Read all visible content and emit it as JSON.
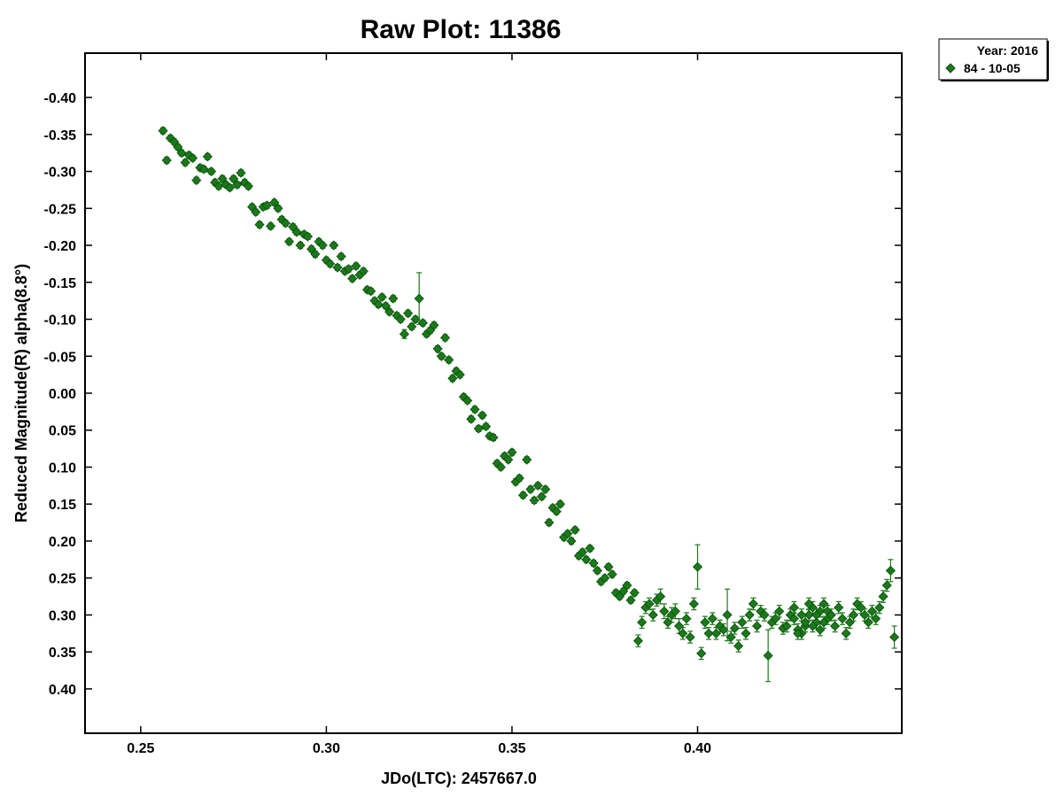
{
  "chart_data": {
    "type": "scatter",
    "title": "Raw Plot: 11386",
    "xlabel": "JDo(LTC): 2457667.0",
    "ylabel": "Reduced Magnitude(R) alpha(8.8°)",
    "xlim": [
      0.235,
      0.455
    ],
    "ylim": [
      -0.46,
      0.46
    ],
    "y_inverted": true,
    "x_ticks": [
      "0.25",
      "0.30",
      "0.35",
      "0.40"
    ],
    "y_ticks": [
      "-0.40",
      "-0.35",
      "-0.30",
      "-0.25",
      "-0.20",
      "-0.15",
      "-0.10",
      "-0.05",
      "0.00",
      "0.05",
      "0.10",
      "0.15",
      "0.20",
      "0.25",
      "0.30",
      "0.35",
      "0.40"
    ],
    "grid": false,
    "legend": {
      "title": "Year: 2016",
      "placement": "top-right-outside"
    },
    "series": [
      {
        "name": "84 - 10-05",
        "color": "#1a7a1a",
        "marker": "diamond",
        "points": [
          [
            0.256,
            -0.355,
            0.004
          ],
          [
            0.257,
            -0.315,
            0.004
          ],
          [
            0.258,
            -0.345,
            0.004
          ],
          [
            0.259,
            -0.34,
            0.004
          ],
          [
            0.26,
            -0.333,
            0.004
          ],
          [
            0.261,
            -0.325,
            0.004
          ],
          [
            0.262,
            -0.312,
            0.004
          ],
          [
            0.263,
            -0.322,
            0.004
          ],
          [
            0.264,
            -0.318,
            0.004
          ],
          [
            0.265,
            -0.288,
            0.004
          ],
          [
            0.266,
            -0.305,
            0.004
          ],
          [
            0.267,
            -0.303,
            0.004
          ],
          [
            0.268,
            -0.32,
            0.004
          ],
          [
            0.269,
            -0.3,
            0.004
          ],
          [
            0.27,
            -0.285,
            0.004
          ],
          [
            0.271,
            -0.28,
            0.004
          ],
          [
            0.272,
            -0.29,
            0.004
          ],
          [
            0.273,
            -0.282,
            0.004
          ],
          [
            0.274,
            -0.278,
            0.004
          ],
          [
            0.275,
            -0.29,
            0.004
          ],
          [
            0.276,
            -0.282,
            0.004
          ],
          [
            0.277,
            -0.298,
            0.004
          ],
          [
            0.278,
            -0.285,
            0.004
          ],
          [
            0.279,
            -0.28,
            0.004
          ],
          [
            0.28,
            -0.252,
            0.004
          ],
          [
            0.281,
            -0.245,
            0.004
          ],
          [
            0.282,
            -0.228,
            0.004
          ],
          [
            0.283,
            -0.252,
            0.004
          ],
          [
            0.284,
            -0.254,
            0.004
          ],
          [
            0.285,
            -0.226,
            0.004
          ],
          [
            0.286,
            -0.258,
            0.004
          ],
          [
            0.287,
            -0.25,
            0.004
          ],
          [
            0.288,
            -0.235,
            0.004
          ],
          [
            0.289,
            -0.23,
            0.004
          ],
          [
            0.29,
            -0.205,
            0.004
          ],
          [
            0.291,
            -0.225,
            0.004
          ],
          [
            0.292,
            -0.218,
            0.004
          ],
          [
            0.293,
            -0.2,
            0.004
          ],
          [
            0.294,
            -0.215,
            0.004
          ],
          [
            0.295,
            -0.212,
            0.004
          ],
          [
            0.296,
            -0.195,
            0.004
          ],
          [
            0.297,
            -0.188,
            0.004
          ],
          [
            0.298,
            -0.205,
            0.004
          ],
          [
            0.299,
            -0.2,
            0.004
          ],
          [
            0.3,
            -0.18,
            0.004
          ],
          [
            0.301,
            -0.175,
            0.004
          ],
          [
            0.302,
            -0.2,
            0.004
          ],
          [
            0.303,
            -0.17,
            0.004
          ],
          [
            0.304,
            -0.185,
            0.004
          ],
          [
            0.305,
            -0.165,
            0.004
          ],
          [
            0.306,
            -0.168,
            0.004
          ],
          [
            0.307,
            -0.155,
            0.004
          ],
          [
            0.308,
            -0.172,
            0.004
          ],
          [
            0.309,
            -0.16,
            0.004
          ],
          [
            0.31,
            -0.165,
            0.004
          ],
          [
            0.311,
            -0.14,
            0.004
          ],
          [
            0.312,
            -0.138,
            0.004
          ],
          [
            0.313,
            -0.125,
            0.004
          ],
          [
            0.314,
            -0.12,
            0.004
          ],
          [
            0.315,
            -0.13,
            0.004
          ],
          [
            0.316,
            -0.118,
            0.004
          ],
          [
            0.317,
            -0.11,
            0.004
          ],
          [
            0.318,
            -0.128,
            0.004
          ],
          [
            0.319,
            -0.105,
            0.004
          ],
          [
            0.32,
            -0.1,
            0.004
          ],
          [
            0.321,
            -0.08,
            0.006
          ],
          [
            0.322,
            -0.108,
            0.004
          ],
          [
            0.323,
            -0.09,
            0.004
          ],
          [
            0.324,
            -0.1,
            0.004
          ],
          [
            0.325,
            -0.128,
            0.035
          ],
          [
            0.326,
            -0.095,
            0.004
          ],
          [
            0.327,
            -0.08,
            0.004
          ],
          [
            0.328,
            -0.085,
            0.004
          ],
          [
            0.329,
            -0.092,
            0.004
          ],
          [
            0.33,
            -0.06,
            0.004
          ],
          [
            0.331,
            -0.05,
            0.004
          ],
          [
            0.332,
            -0.075,
            0.004
          ],
          [
            0.333,
            -0.045,
            0.004
          ],
          [
            0.334,
            -0.02,
            0.004
          ],
          [
            0.335,
            -0.03,
            0.004
          ],
          [
            0.336,
            -0.025,
            0.004
          ],
          [
            0.337,
            0.005,
            0.004
          ],
          [
            0.338,
            0.01,
            0.004
          ],
          [
            0.339,
            0.035,
            0.004
          ],
          [
            0.34,
            0.022,
            0.004
          ],
          [
            0.341,
            0.048,
            0.004
          ],
          [
            0.342,
            0.03,
            0.004
          ],
          [
            0.343,
            0.045,
            0.004
          ],
          [
            0.344,
            0.058,
            0.004
          ],
          [
            0.345,
            0.06,
            0.004
          ],
          [
            0.346,
            0.095,
            0.004
          ],
          [
            0.347,
            0.1,
            0.004
          ],
          [
            0.348,
            0.085,
            0.004
          ],
          [
            0.349,
            0.09,
            0.004
          ],
          [
            0.35,
            0.08,
            0.004
          ],
          [
            0.351,
            0.12,
            0.004
          ],
          [
            0.352,
            0.115,
            0.004
          ],
          [
            0.353,
            0.138,
            0.004
          ],
          [
            0.354,
            0.09,
            0.004
          ],
          [
            0.355,
            0.13,
            0.004
          ],
          [
            0.356,
            0.145,
            0.004
          ],
          [
            0.357,
            0.125,
            0.004
          ],
          [
            0.358,
            0.14,
            0.004
          ],
          [
            0.359,
            0.13,
            0.004
          ],
          [
            0.36,
            0.175,
            0.004
          ],
          [
            0.361,
            0.155,
            0.004
          ],
          [
            0.362,
            0.16,
            0.004
          ],
          [
            0.363,
            0.15,
            0.004
          ],
          [
            0.364,
            0.195,
            0.004
          ],
          [
            0.365,
            0.19,
            0.004
          ],
          [
            0.366,
            0.2,
            0.004
          ],
          [
            0.367,
            0.185,
            0.004
          ],
          [
            0.368,
            0.22,
            0.004
          ],
          [
            0.369,
            0.215,
            0.004
          ],
          [
            0.37,
            0.225,
            0.004
          ],
          [
            0.371,
            0.21,
            0.004
          ],
          [
            0.372,
            0.23,
            0.004
          ],
          [
            0.373,
            0.24,
            0.004
          ],
          [
            0.374,
            0.255,
            0.004
          ],
          [
            0.375,
            0.25,
            0.004
          ],
          [
            0.376,
            0.235,
            0.004
          ],
          [
            0.377,
            0.245,
            0.004
          ],
          [
            0.378,
            0.27,
            0.004
          ],
          [
            0.379,
            0.275,
            0.004
          ],
          [
            0.38,
            0.268,
            0.004
          ],
          [
            0.381,
            0.26,
            0.004
          ],
          [
            0.382,
            0.28,
            0.004
          ],
          [
            0.383,
            0.27,
            0.004
          ],
          [
            0.384,
            0.335,
            0.008
          ],
          [
            0.385,
            0.31,
            0.008
          ],
          [
            0.386,
            0.29,
            0.008
          ],
          [
            0.387,
            0.285,
            0.008
          ],
          [
            0.388,
            0.3,
            0.008
          ],
          [
            0.389,
            0.28,
            0.008
          ],
          [
            0.39,
            0.275,
            0.01
          ],
          [
            0.391,
            0.295,
            0.01
          ],
          [
            0.392,
            0.31,
            0.008
          ],
          [
            0.393,
            0.3,
            0.01
          ],
          [
            0.394,
            0.295,
            0.01
          ],
          [
            0.395,
            0.315,
            0.01
          ],
          [
            0.396,
            0.325,
            0.008
          ],
          [
            0.397,
            0.305,
            0.008
          ],
          [
            0.398,
            0.33,
            0.008
          ],
          [
            0.399,
            0.285,
            0.008
          ],
          [
            0.4,
            0.235,
            0.03
          ],
          [
            0.401,
            0.352,
            0.008
          ],
          [
            0.402,
            0.31,
            0.008
          ],
          [
            0.403,
            0.325,
            0.008
          ],
          [
            0.404,
            0.305,
            0.008
          ],
          [
            0.405,
            0.325,
            0.008
          ],
          [
            0.406,
            0.315,
            0.008
          ],
          [
            0.407,
            0.32,
            0.008
          ],
          [
            0.408,
            0.3,
            0.035
          ],
          [
            0.409,
            0.33,
            0.008
          ],
          [
            0.41,
            0.318,
            0.008
          ],
          [
            0.411,
            0.342,
            0.008
          ],
          [
            0.412,
            0.31,
            0.008
          ],
          [
            0.413,
            0.325,
            0.008
          ],
          [
            0.414,
            0.3,
            0.008
          ],
          [
            0.415,
            0.285,
            0.008
          ],
          [
            0.416,
            0.315,
            0.008
          ],
          [
            0.417,
            0.295,
            0.008
          ],
          [
            0.418,
            0.3,
            0.008
          ],
          [
            0.419,
            0.355,
            0.035
          ],
          [
            0.42,
            0.31,
            0.008
          ],
          [
            0.421,
            0.305,
            0.008
          ],
          [
            0.422,
            0.295,
            0.008
          ],
          [
            0.423,
            0.318,
            0.008
          ],
          [
            0.424,
            0.315,
            0.008
          ],
          [
            0.425,
            0.3,
            0.008
          ],
          [
            0.426,
            0.305,
            0.008
          ],
          [
            0.427,
            0.32,
            0.008
          ],
          [
            0.428,
            0.325,
            0.008
          ],
          [
            0.429,
            0.315,
            0.008
          ],
          [
            0.43,
            0.3,
            0.008
          ],
          [
            0.431,
            0.29,
            0.008
          ],
          [
            0.432,
            0.31,
            0.008
          ],
          [
            0.433,
            0.295,
            0.008
          ],
          [
            0.434,
            0.285,
            0.008
          ],
          [
            0.435,
            0.305,
            0.008
          ],
          [
            0.426,
            0.29,
            0.008
          ],
          [
            0.427,
            0.325,
            0.008
          ],
          [
            0.428,
            0.3,
            0.008
          ],
          [
            0.429,
            0.31,
            0.008
          ],
          [
            0.43,
            0.285,
            0.008
          ],
          [
            0.431,
            0.315,
            0.008
          ],
          [
            0.432,
            0.3,
            0.008
          ],
          [
            0.433,
            0.32,
            0.008
          ],
          [
            0.434,
            0.31,
            0.008
          ],
          [
            0.435,
            0.295,
            0.008
          ],
          [
            0.436,
            0.3,
            0.008
          ],
          [
            0.437,
            0.315,
            0.008
          ],
          [
            0.438,
            0.29,
            0.008
          ],
          [
            0.439,
            0.305,
            0.008
          ],
          [
            0.44,
            0.325,
            0.008
          ],
          [
            0.441,
            0.31,
            0.008
          ],
          [
            0.442,
            0.3,
            0.008
          ],
          [
            0.443,
            0.285,
            0.008
          ],
          [
            0.444,
            0.29,
            0.008
          ],
          [
            0.445,
            0.3,
            0.008
          ],
          [
            0.446,
            0.31,
            0.008
          ],
          [
            0.447,
            0.295,
            0.008
          ],
          [
            0.448,
            0.305,
            0.008
          ],
          [
            0.449,
            0.29,
            0.008
          ],
          [
            0.45,
            0.275,
            0.008
          ],
          [
            0.451,
            0.26,
            0.008
          ],
          [
            0.452,
            0.24,
            0.015
          ],
          [
            0.453,
            0.33,
            0.015
          ]
        ]
      }
    ]
  }
}
